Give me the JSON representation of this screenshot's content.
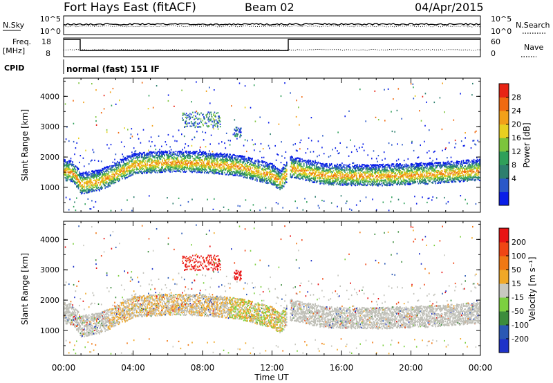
{
  "header": {
    "station": "Fort Hays East (fitACF)",
    "beam": "Beam 02",
    "date": "04/Apr/2015"
  },
  "top_panels": {
    "nsky_label": "N.Sky",
    "nsky_ticks": [
      "10^5",
      "10^0"
    ],
    "nsearch_label": "N.Search",
    "nsearch_ticks": [
      "10^5",
      "10^0"
    ],
    "freq_label": "Freq.",
    "freq_unit": "[MHz]",
    "freq_ticks": [
      "18",
      "8"
    ],
    "nave_label": "Nave",
    "nave_ticks": [
      "60",
      "0"
    ],
    "cpid_label": "CPID",
    "cpid_text": "normal (fast) 151 IF"
  },
  "chart_data": [
    {
      "type": "heatmap",
      "name": "power",
      "ylabel": "Slant Range [km]",
      "yticks": [
        "4000",
        "3000",
        "2000",
        "1000"
      ],
      "ylim": [
        180,
        4600
      ],
      "xlabel": "Time UT",
      "xticks": [
        "00:00",
        "04:00",
        "08:00",
        "12:00",
        "16:00",
        "20:00",
        "00:00"
      ],
      "xlim_hours": [
        0,
        24
      ],
      "colorbar_label": "Power [dB]",
      "colorbar_ticks": [
        "28",
        "24",
        "20",
        "16",
        "12",
        "8",
        "4"
      ],
      "colors": [
        "#0a1ee8",
        "#2a58c8",
        "#2d7f6e",
        "#2fa05a",
        "#7cc43c",
        "#e8d020",
        "#f2a018",
        "#f06a10",
        "#e82414"
      ],
      "scatter_band": [
        {
          "t": 0.0,
          "r": 1500
        },
        {
          "t": 0.5,
          "r": 1450
        },
        {
          "t": 1.0,
          "r": 1050
        },
        {
          "t": 2.0,
          "r": 1150
        },
        {
          "t": 3.0,
          "r": 1400
        },
        {
          "t": 4.0,
          "r": 1700
        },
        {
          "t": 6.0,
          "r": 1780
        },
        {
          "t": 8.0,
          "r": 1750
        },
        {
          "t": 10.0,
          "r": 1650
        },
        {
          "t": 12.0,
          "r": 1350
        },
        {
          "t": 12.5,
          "r": 1150
        },
        {
          "t": 13.0,
          "r": 1600
        },
        {
          "t": 15.0,
          "r": 1350
        },
        {
          "t": 18.0,
          "r": 1320
        },
        {
          "t": 21.0,
          "r": 1380
        },
        {
          "t": 24.0,
          "r": 1500
        }
      ]
    },
    {
      "type": "heatmap",
      "name": "velocity",
      "ylabel": "Slant Range [km]",
      "yticks": [
        "4000",
        "3000",
        "2000",
        "1000"
      ],
      "ylim": [
        180,
        4600
      ],
      "xlabel": "Time UT",
      "xticks": [
        "00:00",
        "04:00",
        "08:00",
        "12:00",
        "16:00",
        "20:00",
        "00:00"
      ],
      "xlim_hours": [
        0,
        24
      ],
      "colorbar_label": "Velocity [m s⁻¹]",
      "colorbar_ticks": [
        "200",
        "100",
        "50",
        "15",
        "-15",
        "-50",
        "-100",
        "-200"
      ],
      "colors": [
        "#1e32c8",
        "#2a58b4",
        "#3c8c3c",
        "#7cd040",
        "#c8c8c0",
        "#f0a828",
        "#f07814",
        "#f04614",
        "#e81414"
      ],
      "ground_scatter_color": "#c0c0b8"
    }
  ]
}
